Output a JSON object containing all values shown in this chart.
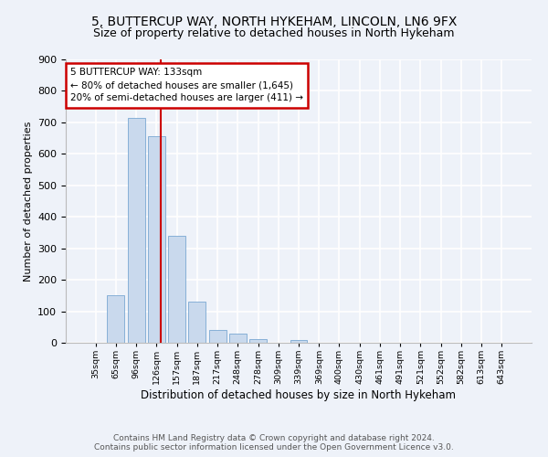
{
  "title": "5, BUTTERCUP WAY, NORTH HYKEHAM, LINCOLN, LN6 9FX",
  "subtitle": "Size of property relative to detached houses in North Hykeham",
  "xlabel": "Distribution of detached houses by size in North Hykeham",
  "ylabel": "Number of detached properties",
  "bins": [
    "35sqm",
    "65sqm",
    "96sqm",
    "126sqm",
    "157sqm",
    "187sqm",
    "217sqm",
    "248sqm",
    "278sqm",
    "309sqm",
    "339sqm",
    "369sqm",
    "400sqm",
    "430sqm",
    "461sqm",
    "491sqm",
    "521sqm",
    "552sqm",
    "582sqm",
    "613sqm",
    "643sqm"
  ],
  "bar_heights": [
    0,
    150,
    715,
    655,
    340,
    130,
    42,
    30,
    12,
    0,
    8,
    0,
    0,
    0,
    0,
    0,
    0,
    0,
    0,
    0,
    0
  ],
  "bar_color": "#c9d9ed",
  "bar_edge_color": "#7aa8d2",
  "vline_color": "#cc0000",
  "annotation_text": "5 BUTTERCUP WAY: 133sqm\n← 80% of detached houses are smaller (1,645)\n20% of semi-detached houses are larger (411) →",
  "annotation_box_color": "#cc0000",
  "ylim": [
    0,
    900
  ],
  "yticks": [
    0,
    100,
    200,
    300,
    400,
    500,
    600,
    700,
    800,
    900
  ],
  "footer_text": "Contains HM Land Registry data © Crown copyright and database right 2024.\nContains public sector information licensed under the Open Government Licence v3.0.",
  "background_color": "#eef2f9",
  "grid_color": "#ffffff",
  "title_fontsize": 10,
  "subtitle_fontsize": 9,
  "ylabel_fontsize": 8,
  "xlabel_fontsize": 8.5,
  "annotation_fontsize": 7.5,
  "footer_fontsize": 6.5
}
